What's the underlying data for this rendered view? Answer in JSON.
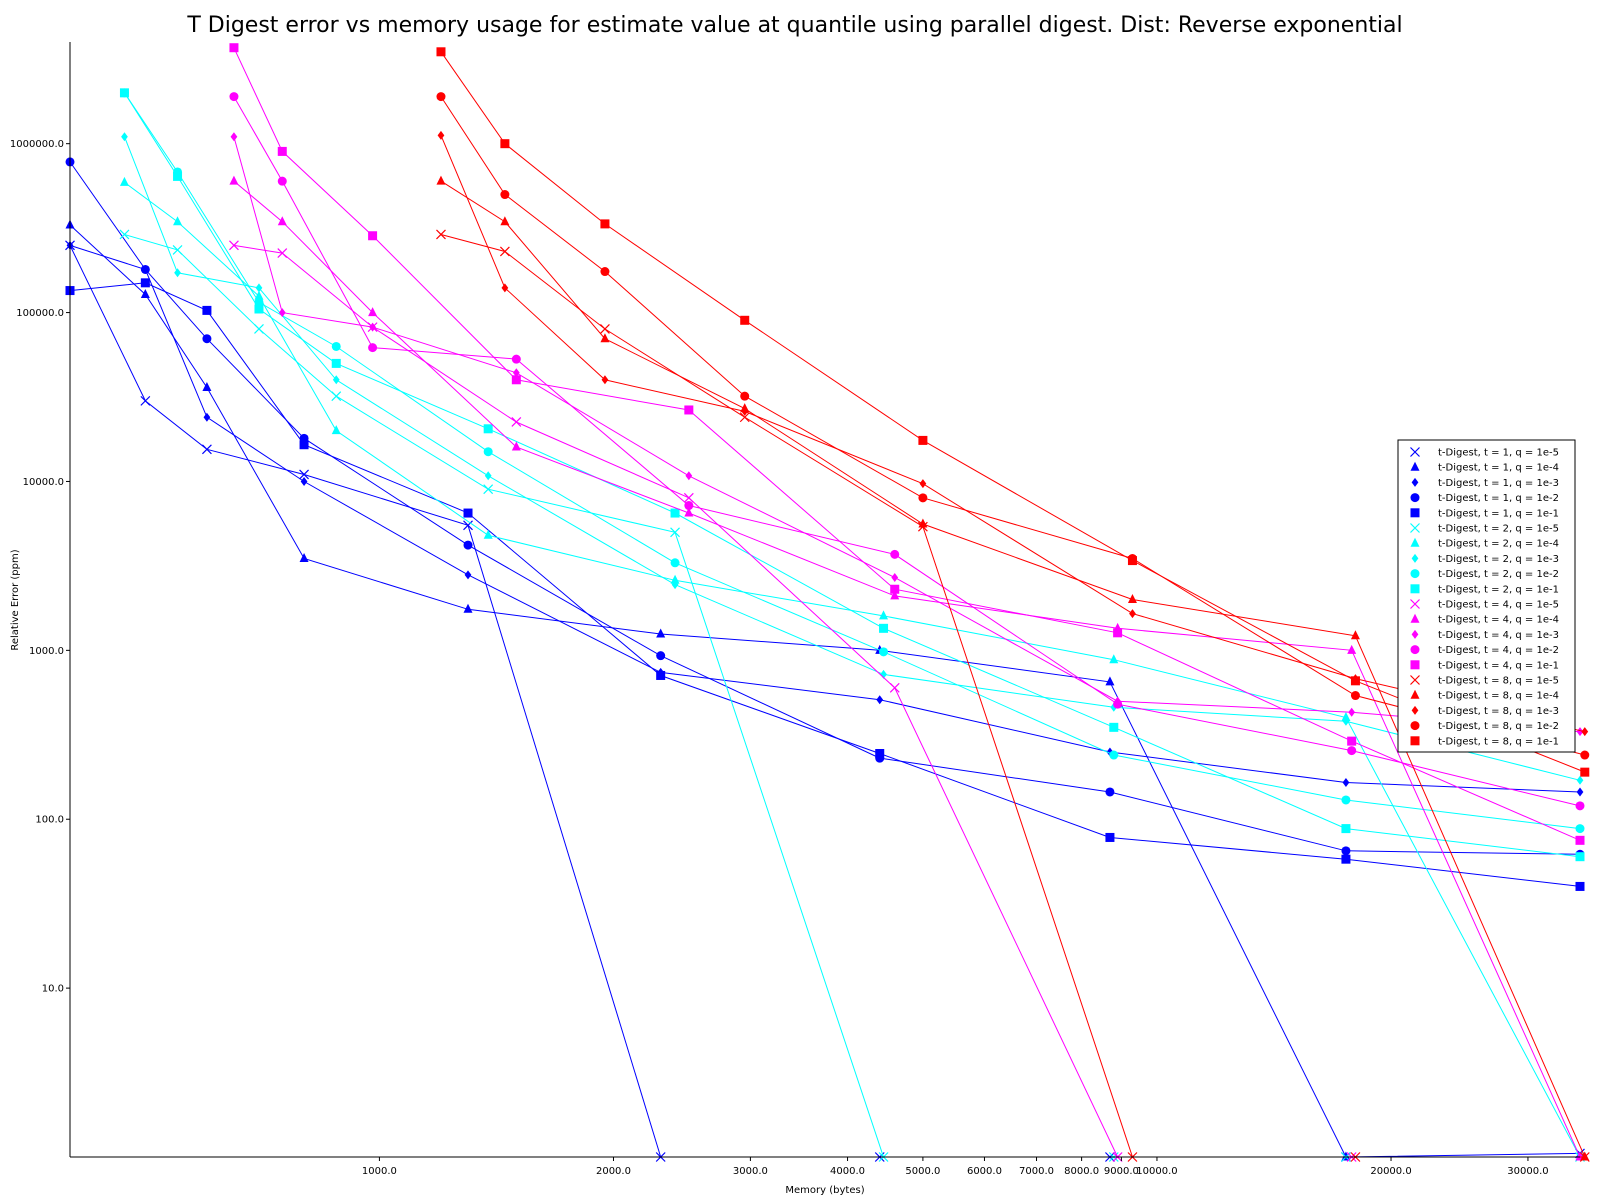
{
  "chart_data": {
    "type": "line",
    "title": "T Digest error vs memory usage for estimate value at quantile using parallel digest. Dist: Reverse exponential",
    "xlabel": "Memory (bytes)",
    "ylabel": "Relative Error (ppm)",
    "x_scale": "log",
    "y_scale": "log",
    "xlim": [
      400,
      35000
    ],
    "ylim": [
      1,
      4000000
    ],
    "x_ticks": [
      {
        "value": 1000,
        "label": "1000.0"
      },
      {
        "value": 2000,
        "label": "2000.0"
      },
      {
        "value": 3000,
        "label": "3000.0"
      },
      {
        "value": 4000,
        "label": "4000.0"
      },
      {
        "value": 5000,
        "label": "5000.0"
      },
      {
        "value": 6000,
        "label": "6000.0"
      },
      {
        "value": 7000,
        "label": "7000.0"
      },
      {
        "value": 8000,
        "label": "8000.0"
      },
      {
        "value": 9000,
        "label": "9000.0"
      },
      {
        "value": 10000,
        "label": "10000.0"
      },
      {
        "value": 20000,
        "label": "20000.0"
      },
      {
        "value": 30000,
        "label": "30000.0"
      }
    ],
    "y_ticks": [
      {
        "value": 10,
        "label": "10.0"
      },
      {
        "value": 100,
        "label": "100.0"
      },
      {
        "value": 1000,
        "label": "1000.0"
      },
      {
        "value": 10000,
        "label": "10000.0"
      },
      {
        "value": 100000,
        "label": "100000.0"
      },
      {
        "value": 1000000,
        "label": "1000000.0"
      }
    ],
    "grid": false,
    "legend_position": "right",
    "series": [
      {
        "name": "t-Digest, t = 1, q = 1e-5",
        "color": "#0000ff",
        "marker": "x",
        "x": [
          400,
          500,
          600,
          800,
          1300,
          2300,
          4400,
          8700,
          17500,
          35000
        ],
        "y": [
          250000,
          30000,
          15500,
          11000,
          5500,
          1,
          1,
          1,
          1,
          1.05
        ]
      },
      {
        "name": "t-Digest, t = 1, q = 1e-4",
        "color": "#0000ff",
        "marker": "triangle",
        "x": [
          400,
          500,
          600,
          800,
          1300,
          2300,
          4400,
          8700,
          17500,
          35000
        ],
        "y": [
          330000,
          128000,
          36000,
          3500,
          1750,
          1250,
          1000,
          650,
          1,
          1
        ]
      },
      {
        "name": "t-Digest, t = 1, q = 1e-3",
        "color": "#0000ff",
        "marker": "diamond",
        "x": [
          400,
          500,
          600,
          800,
          1300,
          2300,
          4400,
          8700,
          17500,
          35000
        ],
        "y": [
          250000,
          180000,
          24000,
          10000,
          2800,
          740,
          510,
          250,
          165,
          145
        ]
      },
      {
        "name": "t-Digest, t = 1, q = 1e-2",
        "color": "#0000ff",
        "marker": "circle",
        "x": [
          400,
          500,
          600,
          800,
          1300,
          2300,
          4400,
          8700,
          17500,
          35000
        ],
        "y": [
          780000,
          180000,
          70000,
          18000,
          4200,
          930,
          230,
          145,
          65,
          62
        ]
      },
      {
        "name": "t-Digest, t = 1, q = 1e-1",
        "color": "#0000ff",
        "marker": "square",
        "x": [
          400,
          500,
          600,
          800,
          1300,
          2300,
          4400,
          8700,
          17500,
          35000
        ],
        "y": [
          135000,
          150000,
          103000,
          16500,
          6500,
          710,
          245,
          78,
          58,
          40
        ]
      },
      {
        "name": "t-Digest, t = 2, q = 1e-5",
        "color": "#00ffff",
        "marker": "x",
        "x": [
          470,
          550,
          700,
          880,
          1380,
          2400,
          4450,
          8800,
          17500,
          35000
        ],
        "y": [
          290000,
          235000,
          80000,
          32000,
          9000,
          5000,
          1,
          1,
          1,
          1
        ]
      },
      {
        "name": "t-Digest, t = 2, q = 1e-4",
        "color": "#00ffff",
        "marker": "triangle",
        "x": [
          470,
          550,
          700,
          880,
          1380,
          2400,
          4450,
          8800,
          17500,
          35000
        ],
        "y": [
          590000,
          345000,
          125000,
          20000,
          4800,
          2600,
          1600,
          880,
          400,
          1
        ]
      },
      {
        "name": "t-Digest, t = 2, q = 1e-3",
        "color": "#00ffff",
        "marker": "diamond",
        "x": [
          470,
          550,
          700,
          880,
          1380,
          2400,
          4450,
          8800,
          17500,
          35000
        ],
        "y": [
          1100000,
          172000,
          140000,
          40000,
          10800,
          2450,
          720,
          460,
          380,
          170
        ]
      },
      {
        "name": "t-Digest, t = 2, q = 1e-2",
        "color": "#00ffff",
        "marker": "circle",
        "x": [
          470,
          550,
          700,
          880,
          1380,
          2400,
          4450,
          8800,
          17500,
          35000
        ],
        "y": [
          2000000,
          680000,
          115000,
          63000,
          15000,
          3300,
          980,
          240,
          130,
          88
        ]
      },
      {
        "name": "t-Digest, t = 2, q = 1e-1",
        "color": "#00ffff",
        "marker": "square",
        "x": [
          470,
          550,
          700,
          880,
          1380,
          2400,
          4450,
          8800,
          17500,
          35000
        ],
        "y": [
          2000000,
          640000,
          105000,
          50000,
          20500,
          6500,
          1350,
          350,
          88,
          60
        ]
      },
      {
        "name": "t-Digest, t = 4, q = 1e-5",
        "color": "#ff00ff",
        "marker": "x",
        "x": [
          650,
          750,
          980,
          1500,
          2500,
          4600,
          8900,
          17800
        ],
        "y": [
          250000,
          225000,
          82000,
          22500,
          8000,
          600,
          1,
          1
        ]
      },
      {
        "name": "t-Digest, t = 4, q = 1e-4",
        "color": "#ff00ff",
        "marker": "triangle",
        "x": [
          650,
          750,
          980,
          1500,
          2500,
          4600,
          8900,
          17800,
          35000
        ],
        "y": [
          600000,
          345000,
          100000,
          16000,
          6500,
          2100,
          1350,
          1000,
          1
        ]
      },
      {
        "name": "t-Digest, t = 4, q = 1e-3",
        "color": "#ff00ff",
        "marker": "diamond",
        "x": [
          650,
          750,
          980,
          1500,
          2500,
          4600,
          8900,
          17800,
          35000
        ],
        "y": [
          1100000,
          100000,
          82000,
          44000,
          10800,
          2700,
          500,
          430,
          330
        ]
      },
      {
        "name": "t-Digest, t = 4, q = 1e-2",
        "color": "#ff00ff",
        "marker": "circle",
        "x": [
          650,
          750,
          980,
          1500,
          2500,
          4600,
          8900,
          17800,
          35000
        ],
        "y": [
          1900000,
          600000,
          62000,
          53000,
          7200,
          3700,
          480,
          255,
          120
        ]
      },
      {
        "name": "t-Digest, t = 4, q = 1e-1",
        "color": "#ff00ff",
        "marker": "square",
        "x": [
          650,
          750,
          980,
          1500,
          2500,
          4600,
          8900,
          17800,
          35000
        ],
        "y": [
          3700000,
          900000,
          285000,
          40000,
          26500,
          2300,
          1270,
          290,
          75
        ]
      },
      {
        "name": "t-Digest, t = 8, q = 1e-5",
        "color": "#ff0000",
        "marker": "x",
        "x": [
          1200,
          1450,
          1950,
          2950,
          5000,
          9300,
          18000,
          35500
        ],
        "y": [
          290000,
          230000,
          80000,
          24000,
          5400,
          1,
          1,
          1
        ]
      },
      {
        "name": "t-Digest, t = 8, q = 1e-4",
        "color": "#ff0000",
        "marker": "triangle",
        "x": [
          1200,
          1450,
          1950,
          2950,
          5000,
          9300,
          18000,
          35500
        ],
        "y": [
          600000,
          345000,
          70000,
          27000,
          5600,
          2000,
          1220,
          1
        ]
      },
      {
        "name": "t-Digest, t = 8, q = 1e-3",
        "color": "#ff0000",
        "marker": "diamond",
        "x": [
          1200,
          1450,
          1950,
          2950,
          5000,
          9300,
          18000,
          35500
        ],
        "y": [
          1120000,
          140000,
          40000,
          26000,
          9700,
          1650,
          680,
          330
        ]
      },
      {
        "name": "t-Digest, t = 8, q = 1e-2",
        "color": "#ff0000",
        "marker": "circle",
        "x": [
          1200,
          1450,
          1950,
          2950,
          5000,
          9300,
          18000,
          35500
        ],
        "y": [
          1900000,
          500000,
          175000,
          32000,
          8000,
          3500,
          540,
          240
        ]
      },
      {
        "name": "t-Digest, t = 8, q = 1e-1",
        "color": "#ff0000",
        "marker": "square",
        "x": [
          1200,
          1450,
          1950,
          2950,
          5000,
          9300,
          18000,
          35500
        ],
        "y": [
          3500000,
          1000000,
          335000,
          90000,
          17500,
          3400,
          660,
          190
        ]
      }
    ]
  }
}
